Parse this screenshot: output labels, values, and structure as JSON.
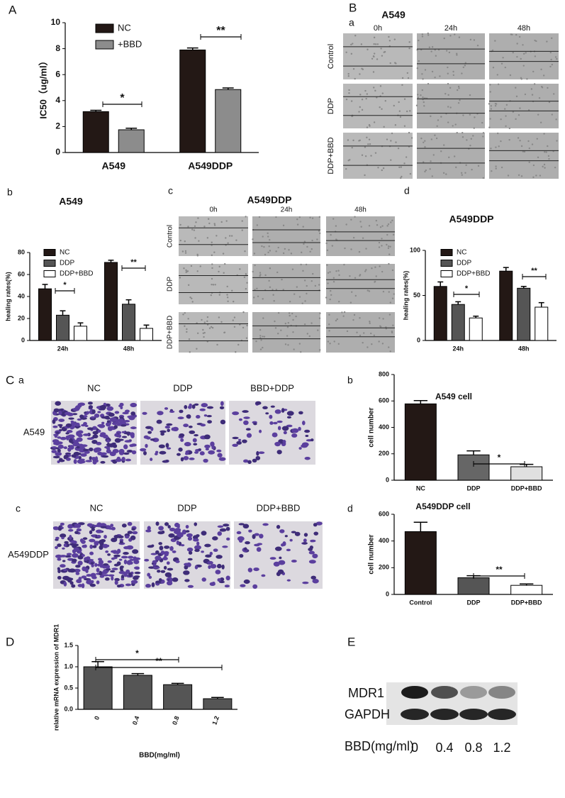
{
  "chart_data": [
    {
      "type": "bar",
      "ylabel": "IC50（ug/ml）",
      "categories": [
        "A549",
        "A549DDP"
      ],
      "series": [
        {
          "name": "NC",
          "color": "#231815",
          "values": [
            3.15,
            7.9
          ],
          "errors": [
            0.1,
            0.15
          ]
        },
        {
          "name": "+BBD",
          "color": "#8c8c8c",
          "values": [
            1.75,
            4.85
          ],
          "errors": [
            0.12,
            0.12
          ]
        }
      ],
      "ylim": [
        0,
        10
      ],
      "yticks": [
        0,
        2,
        4,
        6,
        8,
        10
      ],
      "annotations": [
        "*",
        "**"
      ]
    },
    {
      "type": "bar",
      "title": "A549",
      "ylabel": "healing rates(%)",
      "categories": [
        "24h",
        "48h"
      ],
      "series": [
        {
          "name": "NC",
          "color": "#231815",
          "values": [
            47,
            71
          ],
          "errors": [
            4,
            2
          ]
        },
        {
          "name": "DDP",
          "color": "#555555",
          "values": [
            23,
            33
          ],
          "errors": [
            4,
            4
          ]
        },
        {
          "name": "DDP+BBD",
          "color": "#ffffff",
          "values": [
            13,
            11
          ],
          "errors": [
            3,
            3
          ]
        }
      ],
      "ylim": [
        0,
        80
      ],
      "yticks": [
        0,
        20,
        40,
        60,
        80
      ],
      "annotations": [
        "*",
        "**"
      ]
    },
    {
      "type": "bar",
      "title": "A549DDP",
      "ylabel": "healing rates(%)",
      "categories": [
        "24h",
        "48h"
      ],
      "series": [
        {
          "name": "NC",
          "color": "#231815",
          "values": [
            60,
            77
          ],
          "errors": [
            5,
            4
          ]
        },
        {
          "name": "DDP",
          "color": "#555555",
          "values": [
            40,
            58
          ],
          "errors": [
            3,
            2
          ]
        },
        {
          "name": "DDP+BBD",
          "color": "#ffffff",
          "values": [
            25,
            37
          ],
          "errors": [
            2,
            5
          ]
        }
      ],
      "ylim": [
        0,
        100
      ],
      "yticks": [
        0,
        50,
        100
      ],
      "annotations": [
        "*",
        "**"
      ]
    },
    {
      "type": "bar",
      "title": "A549 cell",
      "ylabel": "cell number",
      "categories": [
        "NC",
        "DDP",
        "DDP+BBD"
      ],
      "values": [
        578,
        192,
        102
      ],
      "errors": [
        25,
        30,
        18
      ],
      "colors": [
        "#231815",
        "#666666",
        "#e0e0e0"
      ],
      "ylim": [
        0,
        800
      ],
      "yticks": [
        0,
        200,
        400,
        600,
        800
      ],
      "annotations": [
        "*"
      ]
    },
    {
      "type": "bar",
      "title": "A549DDP cell",
      "ylabel": "cell number",
      "categories": [
        "Control",
        "DDP",
        "DDP+BBD"
      ],
      "values": [
        470,
        125,
        68
      ],
      "errors": [
        70,
        15,
        10
      ],
      "colors": [
        "#231815",
        "#555555",
        "#ffffff"
      ],
      "ylim": [
        0,
        600
      ],
      "yticks": [
        0,
        200,
        400,
        600
      ],
      "annotations": [
        "**"
      ]
    },
    {
      "type": "bar",
      "ylabel": "relative mRNA expression of MDR1",
      "xlabel": "BBD(mg/ml)",
      "categories": [
        "0",
        "0.4",
        "0.8",
        "1.2"
      ],
      "values": [
        1.0,
        0.8,
        0.58,
        0.25
      ],
      "errors": [
        0.12,
        0.04,
        0.03,
        0.03
      ],
      "color": "#555555",
      "ylim": [
        0,
        1.5
      ],
      "yticks": [
        {
          "value": 0,
          "label": "0.0"
        },
        {
          "value": 0.5,
          "label": "0.5"
        },
        {
          "value": 1,
          "label": "1.0"
        },
        {
          "value": 1.5,
          "label": "1.5"
        }
      ],
      "annotations": [
        "*",
        "**"
      ]
    }
  ],
  "panel_labels": [
    "A",
    "B",
    "a",
    "b",
    "c",
    "d",
    "C",
    "a",
    "b",
    "c",
    "d",
    "D",
    "E"
  ],
  "wound_a549": {
    "title": "A549",
    "columns": [
      "0h",
      "24h",
      "48h"
    ],
    "rows": [
      "Control",
      "DDP",
      "DDP+BBD"
    ]
  },
  "wound_a549ddp": {
    "title": "A549DDP",
    "columns": [
      "0h",
      "24h",
      "48h"
    ],
    "rows": [
      "Control",
      "DDP",
      "DDP+BBD"
    ]
  },
  "transwell_a549": {
    "columns": [
      "NC",
      "DDP",
      "BBD+DDP"
    ],
    "row": "A549"
  },
  "transwell_a549ddp": {
    "columns": [
      "NC",
      "DDP",
      "DDP+BBD"
    ],
    "row": "A549DDP"
  },
  "western": {
    "rows": [
      "MDR1",
      "GAPDH"
    ],
    "xlabel": "BBD(mg/ml)",
    "doses": [
      "0",
      "0.4",
      "0.8",
      "1.2"
    ]
  }
}
